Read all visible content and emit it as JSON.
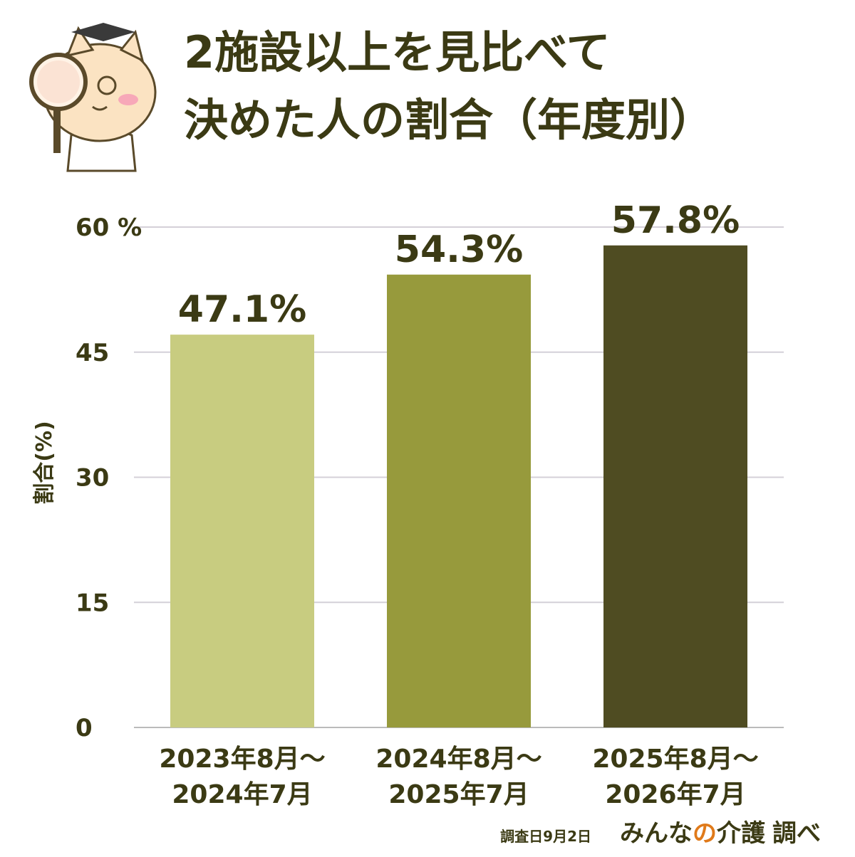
{
  "chart_data": {
    "type": "bar",
    "title": [
      "2施設以上を見比べて",
      "決めた人の割合（年度別）"
    ],
    "ylabel": "割合(%)",
    "categories": [
      [
        "2023年8月～",
        "2024年7月"
      ],
      [
        "2024年8月～",
        "2025年7月"
      ],
      [
        "2025年8月～",
        "2026年7月"
      ]
    ],
    "values": [
      47.1,
      54.3,
      57.8
    ],
    "value_labels": [
      "47.1%",
      "54.3%",
      "57.8%"
    ],
    "colors": [
      "#c8cc80",
      "#979a3c",
      "#4f4c22"
    ],
    "ylim": [
      0,
      60
    ],
    "yticks": [
      0,
      15,
      30,
      45,
      {
        "value": 60,
        "label": "60 %"
      }
    ],
    "grid": true,
    "footer": {
      "date": "調査日9月2日",
      "brand": [
        "みんな",
        "の",
        "介護"
      ],
      "suffix": "調べ"
    }
  }
}
